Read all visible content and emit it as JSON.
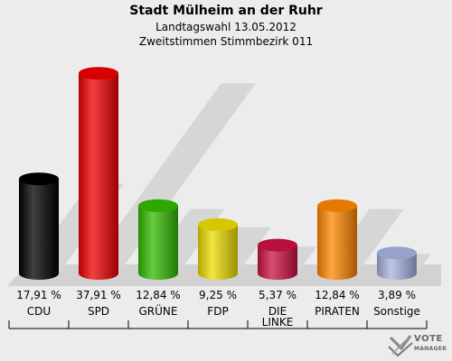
{
  "chart_data": {
    "type": "bar",
    "title": "Stadt Mülheim an der Ruhr",
    "subtitle_lines": [
      "Landtagswahl 13.05.2012",
      "Zweitstimmen Stimmbezirk 011"
    ],
    "categories": [
      "CDU",
      "SPD",
      "GRÜNE",
      "FDP",
      "DIE LINKE",
      "PIRATEN",
      "Sonstige"
    ],
    "category_lines": [
      [
        "CDU"
      ],
      [
        "SPD"
      ],
      [
        "GRÜNE"
      ],
      [
        "FDP"
      ],
      [
        "DIE",
        "LINKE"
      ],
      [
        "PIRATEN"
      ],
      [
        "Sonstige"
      ]
    ],
    "values": [
      17.91,
      37.91,
      12.84,
      9.25,
      5.37,
      12.84,
      3.89
    ],
    "value_labels": [
      "17,91 %",
      "37,91 %",
      "12,84 %",
      "9,25 %",
      "5,37 %",
      "12,84 %",
      "3,89 %"
    ],
    "colors": [
      "#000000",
      "#ee0000",
      "#33bb00",
      "#eedd00",
      "#cc1144",
      "#ff8800",
      "#a8b4e0"
    ],
    "ylim": [
      0,
      40
    ],
    "grid": false,
    "legend": "none"
  },
  "logo": {
    "text_main": "VOTE",
    "text_sub": "MANAGER"
  }
}
